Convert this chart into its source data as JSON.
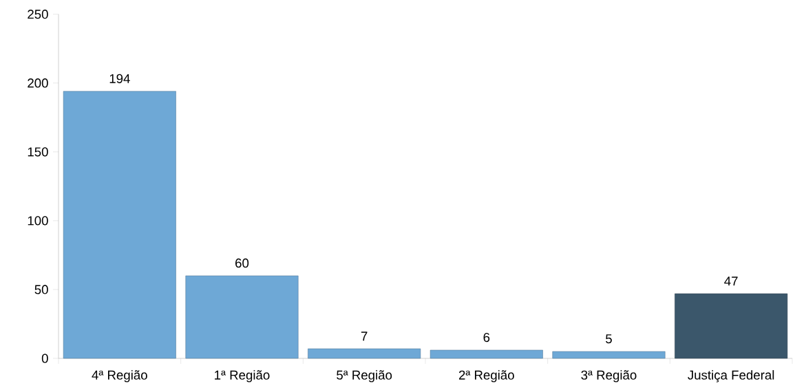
{
  "chart_data": {
    "type": "bar",
    "categories": [
      "4ª Região",
      "1ª Região",
      "5ª Região",
      "2ª Região",
      "3ª Região",
      "Justiça Federal"
    ],
    "values": [
      194,
      60,
      7,
      6,
      5,
      47
    ],
    "colors": [
      "#6ea8d6",
      "#6ea8d6",
      "#6ea8d6",
      "#6ea8d6",
      "#6ea8d6",
      "#3b576b"
    ],
    "ylim": [
      0,
      250
    ],
    "yticks": [
      0,
      50,
      100,
      150,
      200,
      250
    ],
    "data_labels": true
  }
}
